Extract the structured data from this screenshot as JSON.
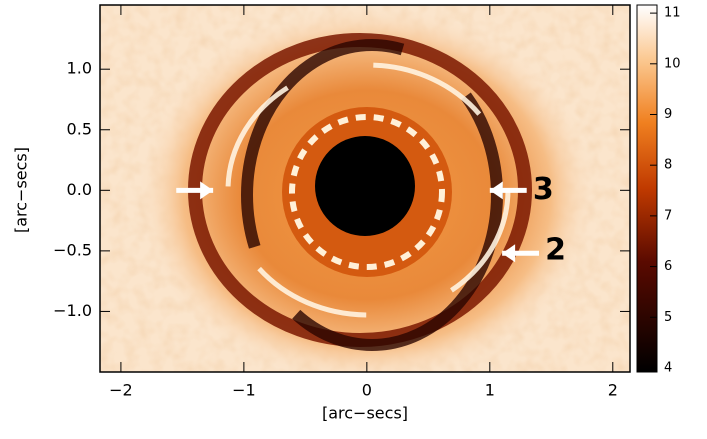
{
  "chart_data": {
    "type": "image",
    "x_label": "[arc−secs]",
    "y_label": "[arc−secs]",
    "xlim": [
      -2.17,
      2.14
    ],
    "ylim": [
      -1.5,
      1.53
    ],
    "xticks": [
      {
        "value": -2,
        "label": "−2"
      },
      {
        "value": -1,
        "label": "−1"
      },
      0,
      1,
      2
    ],
    "yticks": [
      {
        "value": -1.0,
        "label": "−1.0"
      },
      {
        "value": -0.5,
        "label": "−0.5"
      },
      {
        "value": 0.0,
        "label": "0.0"
      },
      {
        "value": 0.5,
        "label": "0.5"
      },
      {
        "value": 1.0,
        "label": "1.0"
      }
    ],
    "colorbar": {
      "lim": [
        3.92,
        11.16
      ],
      "ticks": [
        4,
        5,
        6,
        7,
        8,
        9,
        10,
        11
      ]
    },
    "annotations": [
      "3",
      "2"
    ]
  }
}
